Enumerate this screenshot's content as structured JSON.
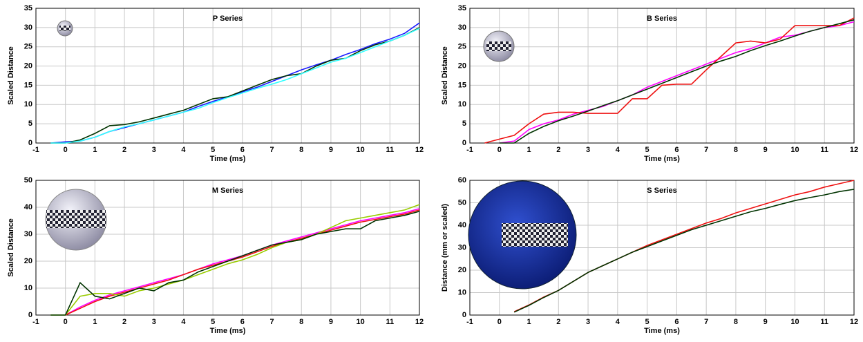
{
  "chart_data": [
    {
      "type": "line",
      "title": "P Series",
      "xlabel": "Time (ms)",
      "ylabel": "Scaled Distance",
      "x": [
        -0.5,
        0,
        0.5,
        1,
        1.5,
        2,
        2.5,
        3,
        3.5,
        4,
        4.5,
        5,
        5.5,
        6,
        6.5,
        7,
        7.5,
        8,
        8.5,
        9,
        9.5,
        10,
        10.5,
        11,
        11.5,
        12
      ],
      "series": [
        {
          "color": "#1a1aff",
          "values": [
            0,
            0.3,
            0.5,
            1.5,
            3,
            4,
            5,
            6,
            7,
            8,
            9.5,
            10.8,
            12,
            13.3,
            14.5,
            16,
            17.5,
            19,
            20.3,
            21.5,
            23,
            24.3,
            25.8,
            27,
            28.5,
            31.2
          ]
        },
        {
          "color": "#003300",
          "values": [
            0,
            0,
            0.8,
            2.5,
            4.5,
            4.8,
            5.5,
            6.5,
            7.5,
            8.5,
            10,
            11.5,
            12,
            13.5,
            15,
            16.5,
            17.5,
            18,
            20,
            21.5,
            22,
            24,
            25.5,
            26.5,
            28,
            30
          ]
        },
        {
          "color": "#33ffff",
          "values": [
            0,
            0,
            0.5,
            1.5,
            3,
            4.2,
            5,
            6,
            7,
            8,
            9,
            10.5,
            11.8,
            13,
            14.2,
            15.3,
            16.5,
            18,
            19.5,
            21,
            22,
            23.5,
            25,
            26.5,
            28,
            29.8
          ]
        }
      ],
      "xlim": [
        -1,
        12
      ],
      "ylim": [
        0,
        35
      ],
      "xticks": [
        -1,
        0,
        1,
        2,
        3,
        4,
        5,
        6,
        7,
        8,
        9,
        10,
        11,
        12
      ],
      "yticks": [
        0,
        5,
        10,
        15,
        20,
        25,
        30,
        35
      ],
      "grid": true
    },
    {
      "type": "line",
      "title": "B Series",
      "xlabel": "Time (ms)",
      "ylabel": "Scaled Distance",
      "x": [
        -0.5,
        0,
        0.5,
        1,
        1.5,
        2,
        2.5,
        3,
        3.5,
        4,
        4.5,
        5,
        5.5,
        6,
        6.5,
        7,
        7.5,
        8,
        8.5,
        9,
        9.5,
        10,
        10.5,
        11,
        11.5,
        12
      ],
      "series": [
        {
          "color": "#ff00ff",
          "values": [
            null,
            0,
            0.5,
            3.5,
            5,
            6,
            7.5,
            8.5,
            9.5,
            11,
            12.5,
            14.5,
            16,
            17.5,
            19,
            20.5,
            22,
            23.5,
            24.5,
            26,
            27.5,
            28,
            29,
            30,
            30.5,
            31.5
          ]
        },
        {
          "color": "#ee1111",
          "values": [
            0,
            1,
            2,
            5,
            7.5,
            8,
            8,
            7.7,
            7.7,
            7.7,
            11.5,
            11.5,
            15,
            15.3,
            15.3,
            19,
            22.5,
            26,
            26.5,
            26,
            27,
            30.5,
            30.5,
            30.5,
            30.5,
            32.5
          ]
        },
        {
          "color": "#003300",
          "values": [
            null,
            0,
            0,
            2.5,
            4.3,
            5.8,
            7,
            8.3,
            9.7,
            11,
            12.5,
            14,
            15.5,
            17,
            18.5,
            20,
            21.3,
            22.5,
            24,
            25.3,
            26.5,
            27.8,
            29,
            30,
            31,
            32
          ]
        }
      ],
      "xlim": [
        -1,
        12
      ],
      "ylim": [
        0,
        35
      ],
      "xticks": [
        -1,
        0,
        1,
        2,
        3,
        4,
        5,
        6,
        7,
        8,
        9,
        10,
        11,
        12
      ],
      "yticks": [
        0,
        5,
        10,
        15,
        20,
        25,
        30,
        35
      ],
      "grid": true
    },
    {
      "type": "line",
      "title": "M Series",
      "xlabel": "Time (ms)",
      "ylabel": "Scaled Distance",
      "x": [
        -0.5,
        0,
        0.5,
        1,
        1.5,
        2,
        2.5,
        3,
        3.5,
        4,
        4.5,
        5,
        5.5,
        6,
        6.5,
        7,
        7.5,
        8,
        8.5,
        9,
        9.5,
        10,
        10.5,
        11,
        11.5,
        12
      ],
      "series": [
        {
          "color": "#ff00ff",
          "values": [
            null,
            0,
            3,
            5.5,
            7.5,
            9,
            10.5,
            12,
            13.5,
            15,
            17,
            19,
            20.5,
            22,
            24,
            26,
            27.5,
            29,
            30.5,
            32,
            33.5,
            35,
            36,
            37,
            38,
            39.5
          ]
        },
        {
          "color": "#ee1111",
          "values": [
            null,
            0,
            2.5,
            5,
            7,
            8.5,
            10,
            11.5,
            13,
            15,
            17,
            18.5,
            20,
            21.5,
            23.5,
            25.5,
            27,
            28.5,
            30,
            31.5,
            33,
            34.5,
            35.5,
            36.5,
            37.5,
            39
          ]
        },
        {
          "color": "#99cc00",
          "values": [
            0,
            0,
            7,
            8,
            8,
            7,
            9,
            10,
            11.5,
            13,
            15,
            17,
            19,
            20.5,
            22.5,
            25,
            27,
            28,
            30,
            32.5,
            35,
            36,
            37,
            38,
            39,
            41
          ]
        },
        {
          "color": "#003300",
          "values": [
            0,
            0,
            12,
            7,
            6,
            8,
            10,
            9,
            12,
            13,
            16,
            18,
            20,
            22,
            24,
            26,
            27,
            28,
            30,
            31,
            32,
            32,
            35,
            36,
            37,
            38.5
          ]
        }
      ],
      "xlim": [
        -1,
        12
      ],
      "ylim": [
        0,
        50
      ],
      "xticks": [
        -1,
        0,
        1,
        2,
        3,
        4,
        5,
        6,
        7,
        8,
        9,
        10,
        11,
        12
      ],
      "yticks": [
        0,
        10,
        20,
        30,
        40,
        50
      ],
      "grid": true
    },
    {
      "type": "line",
      "title": "S Series",
      "xlabel": "Time (ms)",
      "ylabel": "Distance (mm or scaled)",
      "x": [
        -0.5,
        0,
        0.5,
        1,
        1.5,
        2,
        2.5,
        3,
        3.5,
        4,
        4.5,
        5,
        5.5,
        6,
        6.5,
        7,
        7.5,
        8,
        8.5,
        9,
        9.5,
        10,
        10.5,
        11,
        11.5,
        12
      ],
      "series": [
        {
          "color": "#ee1111",
          "values": [
            null,
            null,
            1.5,
            4.5,
            8,
            11,
            15,
            19,
            22,
            25,
            28,
            31,
            33.5,
            36,
            38.5,
            41,
            43,
            45.5,
            47.5,
            49.5,
            51.5,
            53.5,
            55,
            57,
            58.5,
            60
          ]
        },
        {
          "color": "#003300",
          "values": [
            null,
            null,
            1.3,
            4.3,
            7.8,
            11,
            15,
            19,
            22,
            25,
            28,
            30.5,
            33,
            35.5,
            38,
            40,
            42,
            44,
            46,
            47.5,
            49.3,
            51,
            52.3,
            53.5,
            55,
            56
          ]
        }
      ],
      "xlim": [
        -1,
        12
      ],
      "ylim": [
        0,
        60
      ],
      "xticks": [
        -1,
        0,
        1,
        2,
        3,
        4,
        5,
        6,
        7,
        8,
        9,
        10,
        11,
        12
      ],
      "yticks": [
        0,
        10,
        20,
        30,
        40,
        50,
        60
      ],
      "grid": true
    }
  ]
}
